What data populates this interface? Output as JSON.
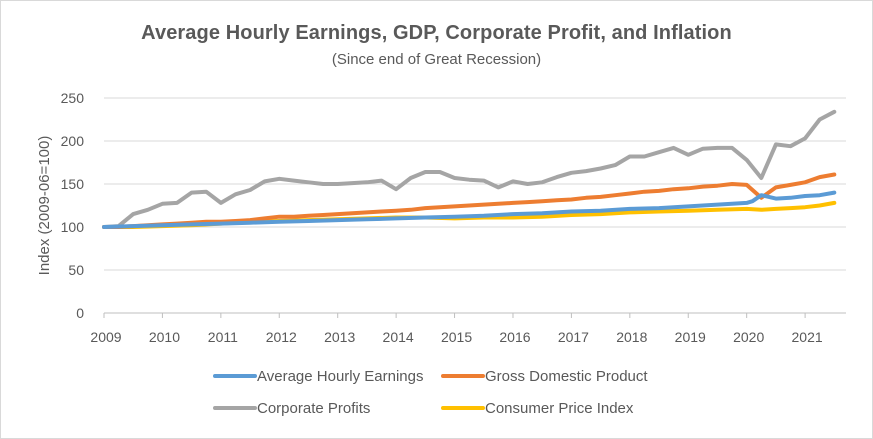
{
  "chart_data": {
    "type": "line",
    "title": "Average Hourly Earnings, GDP, Corporate Profit, and Inflation",
    "subtitle": "(Since end of Great Recession)",
    "xlabel": "",
    "ylabel": "Index (2009-06=100)",
    "xlim": [
      2009.0,
      2021.7
    ],
    "ylim": [
      0,
      250
    ],
    "x_ticks": [
      2009,
      2010,
      2011,
      2012,
      2013,
      2014,
      2015,
      2016,
      2017,
      2018,
      2019,
      2020,
      2021
    ],
    "y_ticks": [
      0,
      50,
      100,
      150,
      200,
      250
    ],
    "grid": "horizontal",
    "legend_position": "bottom",
    "series": [
      {
        "name": "Average Hourly Earnings",
        "color": "#5b9bd5",
        "points": [
          [
            2009.0,
            100
          ],
          [
            2009.5,
            101
          ],
          [
            2010.0,
            102
          ],
          [
            2010.5,
            103
          ],
          [
            2011.0,
            104
          ],
          [
            2011.5,
            105
          ],
          [
            2012.0,
            106
          ],
          [
            2012.5,
            107
          ],
          [
            2013.0,
            108
          ],
          [
            2013.5,
            109
          ],
          [
            2014.0,
            110
          ],
          [
            2014.5,
            111
          ],
          [
            2015.0,
            112
          ],
          [
            2015.5,
            113
          ],
          [
            2016.0,
            115
          ],
          [
            2016.5,
            116
          ],
          [
            2017.0,
            118
          ],
          [
            2017.5,
            119
          ],
          [
            2018.0,
            121
          ],
          [
            2018.5,
            122
          ],
          [
            2019.0,
            124
          ],
          [
            2019.5,
            126
          ],
          [
            2020.0,
            128
          ],
          [
            2020.1,
            130
          ],
          [
            2020.25,
            137
          ],
          [
            2020.5,
            133
          ],
          [
            2020.75,
            134
          ],
          [
            2021.0,
            136
          ],
          [
            2021.25,
            137
          ],
          [
            2021.5,
            140
          ]
        ]
      },
      {
        "name": "Gross Domestic Product",
        "color": "#ed7d31",
        "points": [
          [
            2009.0,
            100
          ],
          [
            2009.25,
            100
          ],
          [
            2009.5,
            101
          ],
          [
            2009.75,
            102
          ],
          [
            2010.0,
            103
          ],
          [
            2010.25,
            104
          ],
          [
            2010.5,
            105
          ],
          [
            2010.75,
            106
          ],
          [
            2011.0,
            106
          ],
          [
            2011.25,
            107
          ],
          [
            2011.5,
            108
          ],
          [
            2011.75,
            110
          ],
          [
            2012.0,
            112
          ],
          [
            2012.25,
            112
          ],
          [
            2012.5,
            113
          ],
          [
            2012.75,
            114
          ],
          [
            2013.0,
            115
          ],
          [
            2013.25,
            116
          ],
          [
            2013.5,
            117
          ],
          [
            2013.75,
            118
          ],
          [
            2014.0,
            119
          ],
          [
            2014.25,
            120
          ],
          [
            2014.5,
            122
          ],
          [
            2014.75,
            123
          ],
          [
            2015.0,
            124
          ],
          [
            2015.25,
            125
          ],
          [
            2015.5,
            126
          ],
          [
            2015.75,
            127
          ],
          [
            2016.0,
            128
          ],
          [
            2016.25,
            129
          ],
          [
            2016.5,
            130
          ],
          [
            2016.75,
            131
          ],
          [
            2017.0,
            132
          ],
          [
            2017.25,
            134
          ],
          [
            2017.5,
            135
          ],
          [
            2017.75,
            137
          ],
          [
            2018.0,
            139
          ],
          [
            2018.25,
            141
          ],
          [
            2018.5,
            142
          ],
          [
            2018.75,
            144
          ],
          [
            2019.0,
            145
          ],
          [
            2019.25,
            147
          ],
          [
            2019.5,
            148
          ],
          [
            2019.75,
            150
          ],
          [
            2020.0,
            149
          ],
          [
            2020.25,
            134
          ],
          [
            2020.5,
            146
          ],
          [
            2020.75,
            149
          ],
          [
            2021.0,
            152
          ],
          [
            2021.25,
            158
          ],
          [
            2021.5,
            161
          ]
        ]
      },
      {
        "name": "Corporate Profits",
        "color": "#a5a5a5",
        "points": [
          [
            2009.0,
            100
          ],
          [
            2009.25,
            101
          ],
          [
            2009.5,
            115
          ],
          [
            2009.75,
            120
          ],
          [
            2010.0,
            127
          ],
          [
            2010.25,
            128
          ],
          [
            2010.5,
            140
          ],
          [
            2010.75,
            141
          ],
          [
            2011.0,
            128
          ],
          [
            2011.25,
            138
          ],
          [
            2011.5,
            143
          ],
          [
            2011.75,
            153
          ],
          [
            2012.0,
            156
          ],
          [
            2012.25,
            154
          ],
          [
            2012.5,
            152
          ],
          [
            2012.75,
            150
          ],
          [
            2013.0,
            150
          ],
          [
            2013.25,
            151
          ],
          [
            2013.5,
            152
          ],
          [
            2013.75,
            154
          ],
          [
            2014.0,
            144
          ],
          [
            2014.25,
            157
          ],
          [
            2014.5,
            164
          ],
          [
            2014.75,
            164
          ],
          [
            2015.0,
            157
          ],
          [
            2015.25,
            155
          ],
          [
            2015.5,
            154
          ],
          [
            2015.75,
            146
          ],
          [
            2016.0,
            153
          ],
          [
            2016.25,
            150
          ],
          [
            2016.5,
            152
          ],
          [
            2016.75,
            158
          ],
          [
            2017.0,
            163
          ],
          [
            2017.25,
            165
          ],
          [
            2017.5,
            168
          ],
          [
            2017.75,
            172
          ],
          [
            2018.0,
            182
          ],
          [
            2018.25,
            182
          ],
          [
            2018.5,
            187
          ],
          [
            2018.75,
            192
          ],
          [
            2019.0,
            184
          ],
          [
            2019.25,
            191
          ],
          [
            2019.5,
            192
          ],
          [
            2019.75,
            192
          ],
          [
            2020.0,
            178
          ],
          [
            2020.25,
            157
          ],
          [
            2020.5,
            196
          ],
          [
            2020.75,
            194
          ],
          [
            2021.0,
            203
          ],
          [
            2021.25,
            225
          ],
          [
            2021.5,
            234
          ]
        ]
      },
      {
        "name": "Consumer Price Index",
        "color": "#ffc000",
        "points": [
          [
            2009.0,
            100
          ],
          [
            2009.5,
            100
          ],
          [
            2010.0,
            101
          ],
          [
            2010.5,
            102
          ],
          [
            2011.0,
            104
          ],
          [
            2011.5,
            106
          ],
          [
            2012.0,
            107
          ],
          [
            2012.5,
            108
          ],
          [
            2013.0,
            109
          ],
          [
            2013.5,
            110
          ],
          [
            2014.0,
            111
          ],
          [
            2014.5,
            111
          ],
          [
            2015.0,
            110
          ],
          [
            2015.5,
            111
          ],
          [
            2016.0,
            111
          ],
          [
            2016.5,
            112
          ],
          [
            2017.0,
            114
          ],
          [
            2017.5,
            115
          ],
          [
            2018.0,
            117
          ],
          [
            2018.5,
            118
          ],
          [
            2019.0,
            119
          ],
          [
            2019.5,
            120
          ],
          [
            2020.0,
            121
          ],
          [
            2020.25,
            120
          ],
          [
            2020.5,
            121
          ],
          [
            2020.75,
            122
          ],
          [
            2021.0,
            123
          ],
          [
            2021.25,
            125
          ],
          [
            2021.5,
            128
          ]
        ]
      }
    ]
  }
}
